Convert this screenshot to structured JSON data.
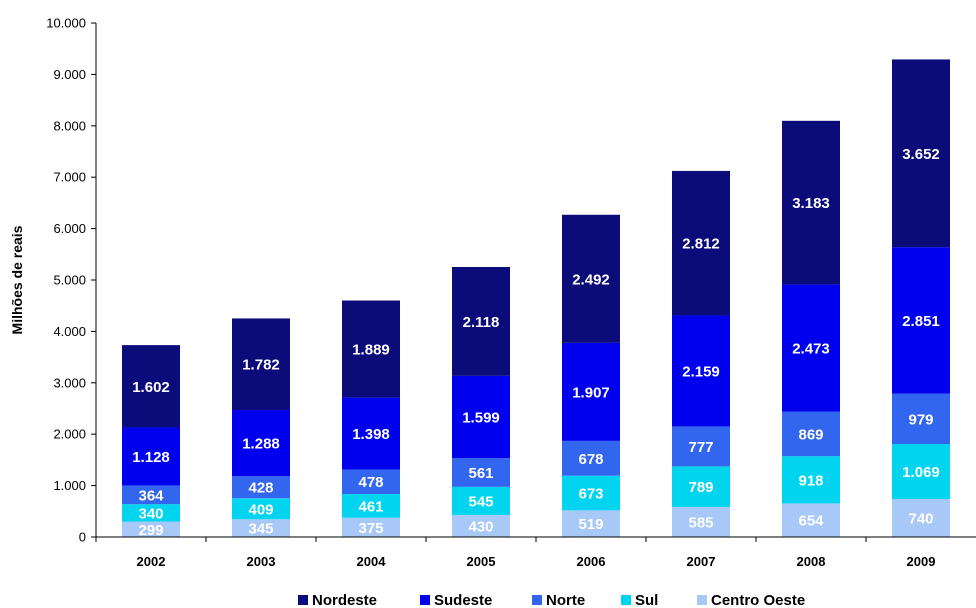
{
  "chart_data": {
    "type": "bar",
    "stacked": true,
    "title": "",
    "xlabel": "",
    "ylabel": "Milhões de reais",
    "ylim": [
      0,
      10000
    ],
    "yticks": [
      0,
      1000,
      2000,
      3000,
      4000,
      5000,
      6000,
      7000,
      8000,
      9000,
      10000
    ],
    "ytick_labels": [
      "0",
      "1.000",
      "2.000",
      "3.000",
      "4.000",
      "5.000",
      "6.000",
      "7.000",
      "8.000",
      "9.000",
      "10.000"
    ],
    "grid": false,
    "legend_position": "bottom",
    "categories": [
      "2002",
      "2003",
      "2004",
      "2005",
      "2006",
      "2007",
      "2008",
      "2009"
    ],
    "series": [
      {
        "name": "Centro Oeste",
        "color": "#a8c8f8",
        "values": [
          299,
          345,
          375,
          430,
          519,
          585,
          654,
          740
        ],
        "labels": [
          "299",
          "345",
          "375",
          "430",
          "519",
          "585",
          "654",
          "740"
        ]
      },
      {
        "name": "Sul",
        "color": "#00d4ee",
        "values": [
          340,
          409,
          461,
          545,
          673,
          789,
          918,
          1069
        ],
        "labels": [
          "340",
          "409",
          "461",
          "545",
          "673",
          "789",
          "918",
          "1.069"
        ]
      },
      {
        "name": "Norte",
        "color": "#3366ee",
        "values": [
          364,
          428,
          478,
          561,
          678,
          777,
          869,
          979
        ],
        "labels": [
          "364",
          "428",
          "478",
          "561",
          "678",
          "777",
          "869",
          "979"
        ]
      },
      {
        "name": "Sudeste",
        "color": "#0000ee",
        "values": [
          1128,
          1288,
          1398,
          1599,
          1907,
          2159,
          2473,
          2851
        ],
        "labels": [
          "1.128",
          "1.288",
          "1.398",
          "1.599",
          "1.907",
          "2.159",
          "2.473",
          "2.851"
        ]
      },
      {
        "name": "Nordeste",
        "color": "#0b0b7a",
        "values": [
          1602,
          1782,
          1889,
          2118,
          2492,
          2812,
          3183,
          3652
        ],
        "labels": [
          "1.602",
          "1.782",
          "1.889",
          "2.118",
          "2.492",
          "2.812",
          "3.183",
          "3.652"
        ]
      }
    ],
    "legend_order": [
      "Nordeste",
      "Sudeste",
      "Norte",
      "Sul",
      "Centro Oeste"
    ]
  }
}
